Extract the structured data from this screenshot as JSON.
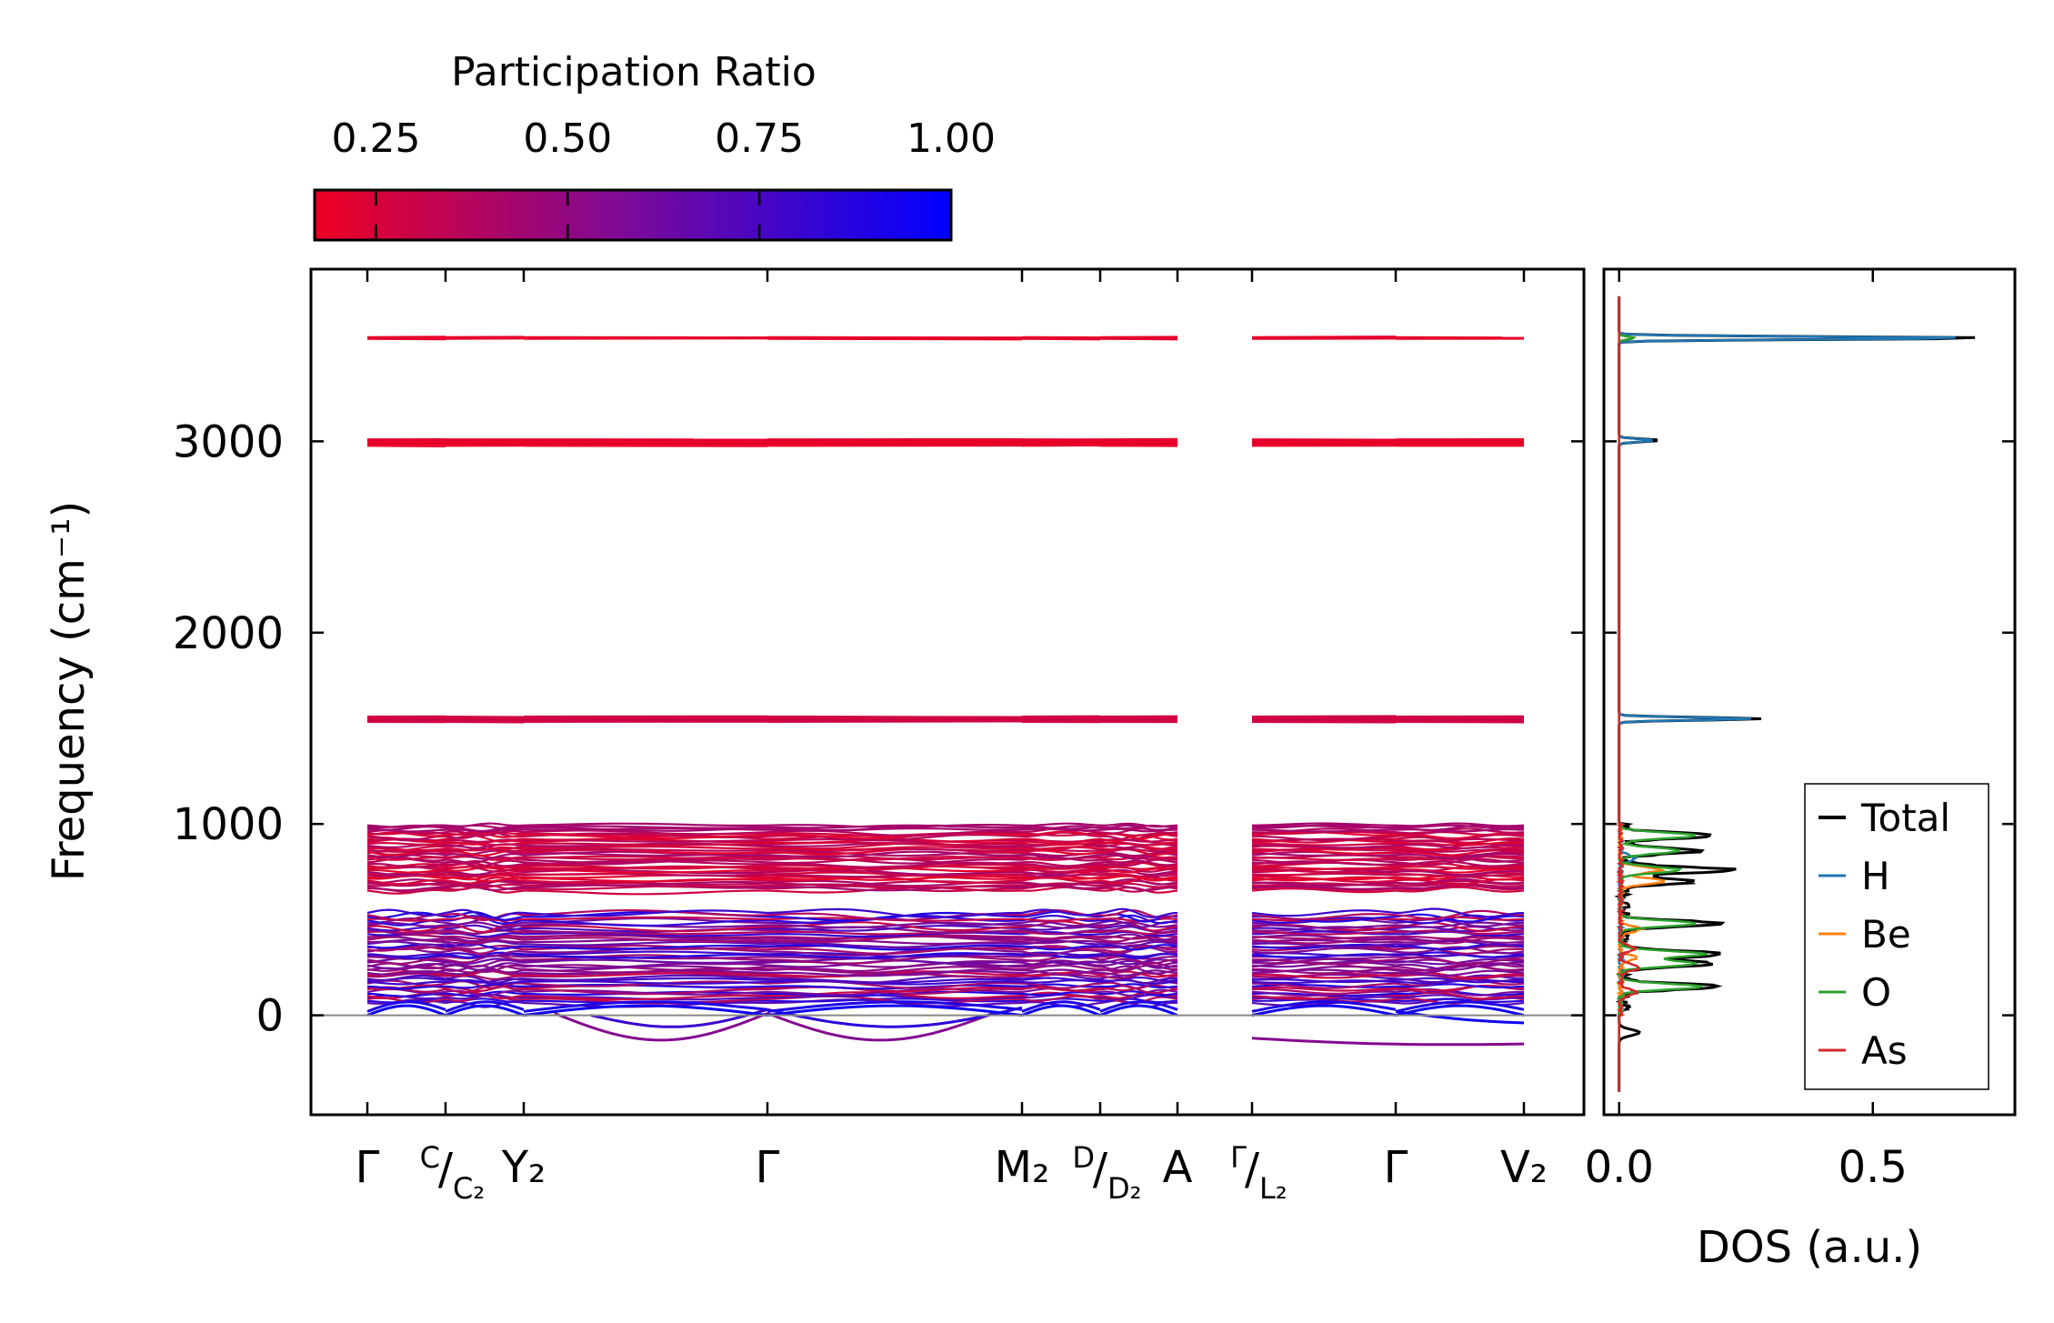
{
  "chart_data": [
    {
      "type": "line",
      "title": "",
      "ylabel": "Frequency (cm⁻¹)",
      "xlabel": "",
      "ylim": [
        -520,
        3900
      ],
      "yticks": [
        0,
        1000,
        2000,
        3000
      ],
      "ytick_labels": [
        "0",
        "1000",
        "2000",
        "3000"
      ],
      "high_point_labels": [
        {
          "id": "G1",
          "text": "Γ"
        },
        {
          "id": "C",
          "text": "C",
          "sub": "C₂"
        },
        {
          "id": "Y2",
          "text": "Y₂"
        },
        {
          "id": "G2",
          "text": "Γ"
        },
        {
          "id": "M2",
          "text": "M₂"
        },
        {
          "id": "D",
          "text": "D",
          "sub": "D₂"
        },
        {
          "id": "A",
          "text": "A"
        },
        {
          "id": "GL",
          "text": "Γ",
          "sub": "L₂"
        },
        {
          "id": "G3",
          "text": "Γ"
        },
        {
          "id": "V2",
          "text": "V₂"
        }
      ],
      "colorbar": {
        "label": "Participation Ratio",
        "range": [
          0.17,
          1.0
        ],
        "ticks": [
          0.25,
          0.5,
          0.75,
          1.0
        ],
        "tick_labels": [
          "0.25",
          "0.50",
          "0.75",
          "1.00"
        ],
        "color_low": "#ee0022",
        "color_mid": "#7a0a9a",
        "color_high": "#0000ff"
      },
      "flat_bands": [
        {
          "freq": 3540,
          "pr": 0.2,
          "count": 2
        },
        {
          "freq": 3000,
          "pr": 0.2,
          "count": 5
        },
        {
          "freq": 2985,
          "pr": 0.2,
          "count": 4
        },
        {
          "freq": 1555,
          "pr": 0.28,
          "count": 3
        },
        {
          "freq": 1540,
          "pr": 0.28,
          "count": 3
        }
      ],
      "band_groups": [
        {
          "range": [
            650,
            1000
          ],
          "pr_range": [
            0.2,
            0.45
          ],
          "count": 40
        },
        {
          "range": [
            60,
            540
          ],
          "pr_range": [
            0.3,
            0.9
          ],
          "count": 48
        }
      ],
      "imaginary_modes": [
        {
          "segment": "Y2-G2",
          "min_freq": -130,
          "pr": 0.55
        },
        {
          "segment": "G2-M2",
          "min_freq": -130,
          "pr": 0.55
        },
        {
          "segment": "GL-V2",
          "min_freq": -150,
          "pr": 0.55
        }
      ]
    },
    {
      "type": "line",
      "title": "",
      "xlabel": "DOS (a.u.)",
      "xlim": [
        -0.03,
        0.78
      ],
      "xticks": [
        0.0,
        0.5
      ],
      "xtick_labels": [
        "0.0",
        "0.5"
      ],
      "legend_position": "bottom-right",
      "series": [
        {
          "name": "Total",
          "color": "#000000",
          "peaks": [
            [
              3540,
              0.73
            ],
            [
              3005,
              0.08
            ],
            [
              1550,
              0.28
            ],
            [
              940,
              0.18
            ],
            [
              860,
              0.16
            ],
            [
              760,
              0.22
            ],
            [
              700,
              0.14
            ],
            [
              480,
              0.19
            ],
            [
              320,
              0.2
            ],
            [
              270,
              0.18
            ],
            [
              150,
              0.19
            ],
            [
              -90,
              0.04
            ]
          ]
        },
        {
          "name": "H",
          "color": "#1f77b4",
          "peaks": [
            [
              3540,
              0.69
            ],
            [
              3005,
              0.07
            ],
            [
              1550,
              0.26
            ],
            [
              820,
              0.03
            ]
          ]
        },
        {
          "name": "Be",
          "color": "#ff7f0e",
          "peaks": [
            [
              760,
              0.08
            ],
            [
              700,
              0.09
            ],
            [
              450,
              0.04
            ],
            [
              300,
              0.03
            ]
          ]
        },
        {
          "name": "O",
          "color": "#2ca02c",
          "peaks": [
            [
              3540,
              0.03
            ],
            [
              940,
              0.15
            ],
            [
              860,
              0.12
            ],
            [
              760,
              0.12
            ],
            [
              480,
              0.15
            ],
            [
              320,
              0.17
            ],
            [
              270,
              0.15
            ],
            [
              150,
              0.16
            ]
          ]
        },
        {
          "name": "As",
          "color": "#d62728",
          "peaks": [
            [
              350,
              0.03
            ],
            [
              250,
              0.04
            ],
            [
              120,
              0.03
            ]
          ]
        }
      ]
    }
  ]
}
